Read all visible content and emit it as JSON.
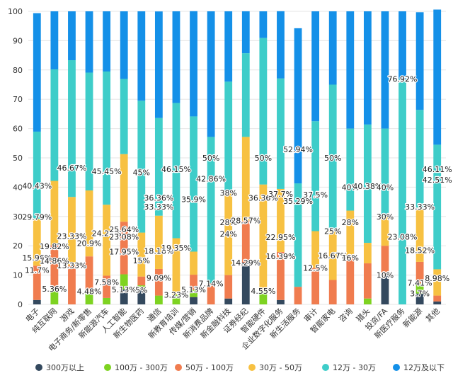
{
  "chart_data": {
    "type": "bar",
    "stacked": true,
    "ylim": [
      0,
      100
    ],
    "yticks": [
      0,
      10,
      20,
      30,
      40,
      50,
      60,
      70,
      80,
      90,
      100
    ],
    "grid": true,
    "legend_position": "bottom",
    "categories": [
      "电子",
      "纯互联网",
      "游戏",
      "电子商务/新零售",
      "新能源汽车",
      "人工智能",
      "新生物医药",
      "通信",
      "新教育培训",
      "传媒/营销",
      "新消费品牌",
      "新金融科技",
      "证券经纪",
      "智能硬件",
      "企业数字化服务",
      "新生活服务",
      "审计",
      "智能家电",
      "咨询",
      "猎头",
      "投资/FA",
      "新医疗服务",
      "新能源",
      "其他"
    ],
    "series": [
      {
        "name": "300万以上",
        "color": "#34495e",
        "values": [
          1.5,
          0,
          0,
          0,
          0,
          5.13,
          5,
          0,
          0,
          2.5,
          0,
          2,
          14.29,
          0,
          1.5,
          0,
          0,
          0,
          0,
          0,
          10,
          0,
          3.7,
          1
        ]
      },
      {
        "name": "100万 - 300万",
        "color": "#7ed321",
        "values": [
          0,
          5.36,
          0,
          4.48,
          2.2,
          5.13,
          1.5,
          3,
          3.23,
          2.5,
          0,
          0,
          0,
          4.55,
          0,
          0,
          0,
          0,
          0,
          2,
          0,
          0,
          3.4,
          0
        ]
      },
      {
        "name": "50万 - 100万",
        "color": "#f07c4f",
        "values": [
          11.7,
          14.86,
          13.33,
          11.9,
          7.58,
          17.95,
          3,
          9.09,
          0,
          5.13,
          7.14,
          8,
          14.29,
          0,
          16.39,
          6,
          12.5,
          8.33,
          16,
          12,
          10,
          0,
          7.41,
          2
        ]
      },
      {
        "name": "30万 - 50万",
        "color": "#f7c142",
        "values": [
          15.96,
          21.93,
          23.33,
          22.5,
          24.24,
          23.07,
          15,
          18.18,
          19.35,
          7.87,
          0,
          28,
          28.57,
          36.36,
          21.5,
          0,
          12.5,
          16.67,
          16,
          7,
          10,
          0,
          18.52,
          8.98
        ]
      },
      {
        "name": "12万 - 30万",
        "color": "#3ecdc9",
        "values": [
          29.79,
          38.03,
          46.67,
          40.22,
          45.45,
          25.64,
          45,
          33.33,
          46.15,
          46.15,
          50,
          38,
          28.57,
          50,
          37.7,
          35.29,
          37.5,
          50,
          28,
          40.38,
          30,
          76.92,
          33.33,
          42.51
        ]
      },
      {
        "name": "12万及以下",
        "color": "#1490e8",
        "values": [
          40.43,
          19.82,
          16.67,
          20.9,
          20.53,
          23.08,
          30.5,
          36.36,
          31.27,
          35.9,
          42.86,
          24,
          14.29,
          9.09,
          22.95,
          52.94,
          37.5,
          25,
          40,
          38.62,
          40,
          23.08,
          33.33,
          46.11
        ]
      }
    ],
    "data_labels": [
      {
        "category": "电子",
        "y": 11.7,
        "text": "11.7%"
      },
      {
        "category": "电子",
        "y": 15.96,
        "text": "15.96%"
      },
      {
        "category": "电子",
        "y": 29.79,
        "text": "29.79%"
      },
      {
        "category": "电子",
        "y": 40.43,
        "text": "40.43%"
      },
      {
        "category": "纯互联网",
        "y": 5.36,
        "text": "5.36%"
      },
      {
        "category": "纯互联网",
        "y": 14.86,
        "text": "14.86%"
      },
      {
        "category": "纯互联网",
        "y": 19.82,
        "text": "19.82%"
      },
      {
        "category": "游戏",
        "y": 13.33,
        "text": "13.33%"
      },
      {
        "category": "游戏",
        "y": 23.33,
        "text": "23.33%"
      },
      {
        "category": "游戏",
        "y": 46.67,
        "text": "46.67%"
      },
      {
        "category": "电子商务/新零售",
        "y": 4.48,
        "text": "4.48%"
      },
      {
        "category": "电子商务/新零售",
        "y": 20.9,
        "text": "20.9%"
      },
      {
        "category": "新能源汽车",
        "y": 7.58,
        "text": "7.58%"
      },
      {
        "category": "新能源汽车",
        "y": 24.24,
        "text": "24.24%"
      },
      {
        "category": "新能源汽车",
        "y": 45.45,
        "text": "45.45%"
      },
      {
        "category": "人工智能",
        "y": 5.13,
        "text": "5.13%"
      },
      {
        "category": "人工智能",
        "y": 17.95,
        "text": "17.95%"
      },
      {
        "category": "人工智能",
        "y": 25.64,
        "text": "25.64%"
      },
      {
        "category": "人工智能",
        "y": 23.08,
        "text": "23.08%"
      },
      {
        "category": "新生物医药",
        "y": 5,
        "text": "5%"
      },
      {
        "category": "新生物医药",
        "y": 15,
        "text": "15%"
      },
      {
        "category": "新生物医药",
        "y": 45,
        "text": "45%"
      },
      {
        "category": "通信",
        "y": 9.09,
        "text": "9.09%"
      },
      {
        "category": "通信",
        "y": 18.18,
        "text": "18.18%"
      },
      {
        "category": "通信",
        "y": 33.33,
        "text": "33.33%"
      },
      {
        "category": "通信",
        "y": 36.36,
        "text": "36.36%"
      },
      {
        "category": "新教育培训",
        "y": 3.23,
        "text": "3.23%"
      },
      {
        "category": "新教育培训",
        "y": 19.35,
        "text": "19.35%"
      },
      {
        "category": "新教育培训",
        "y": 46.15,
        "text": "46.15%"
      },
      {
        "category": "传媒/营销",
        "y": 5.13,
        "text": "5.13%"
      },
      {
        "category": "传媒/营销",
        "y": 35.9,
        "text": "35.9%"
      },
      {
        "category": "新消费品牌",
        "y": 7.14,
        "text": "7.14%"
      },
      {
        "category": "新消费品牌",
        "y": 50,
        "text": "50%"
      },
      {
        "category": "新消费品牌",
        "y": 42.86,
        "text": "42.86%"
      },
      {
        "category": "新金融科技",
        "y": 28,
        "text": "28%"
      },
      {
        "category": "新金融科技",
        "y": 38,
        "text": "38%"
      },
      {
        "category": "新金融科技",
        "y": 24,
        "text": "24%"
      },
      {
        "category": "证券经纪",
        "y": 14.29,
        "text": "14.29%"
      },
      {
        "category": "证券经纪",
        "y": 28.57,
        "text": "28.57%"
      },
      {
        "category": "证券经纪",
        "y": 28.57,
        "text": "28.57%"
      },
      {
        "category": "证券经纪",
        "y": 14.29,
        "text": "14.29%"
      },
      {
        "category": "智能硬件",
        "y": 4.55,
        "text": "4.55%"
      },
      {
        "category": "智能硬件",
        "y": 36.36,
        "text": "36.36%"
      },
      {
        "category": "智能硬件",
        "y": 50,
        "text": "50%"
      },
      {
        "category": "企业数字化服务",
        "y": 16.39,
        "text": "16.39%"
      },
      {
        "category": "企业数字化服务",
        "y": 37.7,
        "text": "37.7%"
      },
      {
        "category": "企业数字化服务",
        "y": 22.95,
        "text": "22.95%"
      },
      {
        "category": "新生活服务",
        "y": 35.29,
        "text": "35.29%"
      },
      {
        "category": "新生活服务",
        "y": 52.94,
        "text": "52.94%"
      },
      {
        "category": "审计",
        "y": 12.5,
        "text": "12.5%"
      },
      {
        "category": "审计",
        "y": 37.5,
        "text": "37.5%"
      },
      {
        "category": "审计",
        "y": 37.5,
        "text": "37.5%"
      },
      {
        "category": "智能家电",
        "y": 16.67,
        "text": "16.67%"
      },
      {
        "category": "智能家电",
        "y": 50,
        "text": "50%"
      },
      {
        "category": "智能家电",
        "y": 25,
        "text": "25%"
      },
      {
        "category": "咨询",
        "y": 16,
        "text": "16%"
      },
      {
        "category": "咨询",
        "y": 16,
        "text": "16%"
      },
      {
        "category": "咨询",
        "y": 28,
        "text": "28%"
      },
      {
        "category": "咨询",
        "y": 40,
        "text": "40%"
      },
      {
        "category": "猎头",
        "y": 40.38,
        "text": "40.38%"
      },
      {
        "category": "投资/FA",
        "y": 10,
        "text": "10%"
      },
      {
        "category": "投资/FA",
        "y": 10,
        "text": "10%"
      },
      {
        "category": "投资/FA",
        "y": 10,
        "text": "10%"
      },
      {
        "category": "投资/FA",
        "y": 30,
        "text": "30%"
      },
      {
        "category": "投资/FA",
        "y": 40,
        "text": "40%"
      },
      {
        "category": "新医疗服务",
        "y": 76.92,
        "text": "76.92%"
      },
      {
        "category": "新医疗服务",
        "y": 23.08,
        "text": "23.08%"
      },
      {
        "category": "新能源",
        "y": 3.7,
        "text": "3.7%"
      },
      {
        "category": "新能源",
        "y": 7.41,
        "text": "7.41%"
      },
      {
        "category": "新能源",
        "y": 18.52,
        "text": "18.52%"
      },
      {
        "category": "新能源",
        "y": 33.33,
        "text": "33.33%"
      },
      {
        "category": "新能源",
        "y": 33.33,
        "text": "33.33%"
      },
      {
        "category": "其他",
        "y": 8.98,
        "text": "8.98%"
      },
      {
        "category": "其他",
        "y": 42.51,
        "text": "42.51%"
      },
      {
        "category": "其他",
        "y": 46.11,
        "text": "46.11%"
      }
    ]
  }
}
